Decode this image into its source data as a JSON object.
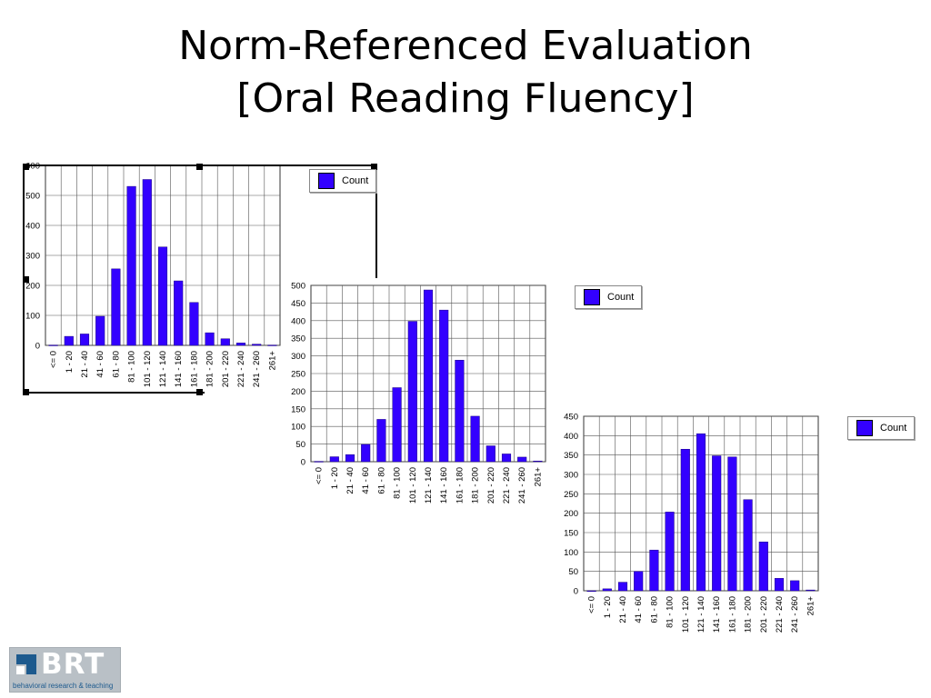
{
  "slide": {
    "title_line1": "Norm-Referenced Evaluation",
    "title_line2": "[Oral Reading Fluency]"
  },
  "logo": {
    "text": "BRT",
    "tagline": "behavioral research & teaching"
  },
  "colors": {
    "bar": "#3300ff",
    "grid": "#555555",
    "legend_border": "#888888"
  },
  "chart_data": [
    {
      "type": "bar",
      "categories": [
        "<= 0",
        "1 - 20",
        "21 - 40",
        "41 - 60",
        "61 - 80",
        "81 - 100",
        "101 - 120",
        "121 - 140",
        "141 - 160",
        "161 - 180",
        "181 - 200",
        "201 - 220",
        "221 - 240",
        "241 - 260",
        "261+"
      ],
      "series": [
        {
          "name": "Count",
          "values": [
            1,
            30,
            38,
            97,
            255,
            530,
            553,
            328,
            215,
            143,
            42,
            22,
            8,
            4,
            1
          ]
        }
      ],
      "yticks": [
        "0",
        "100",
        "200",
        "300",
        "400",
        "500",
        "600"
      ],
      "ylim": [
        0,
        600
      ],
      "legend": "top-right",
      "grid": true
    },
    {
      "type": "bar",
      "categories": [
        "<= 0",
        "1 - 20",
        "21 - 40",
        "41 - 60",
        "61 - 80",
        "81 - 100",
        "101 - 120",
        "121 - 140",
        "141 - 160",
        "161 - 180",
        "181 - 200",
        "201 - 220",
        "221 - 240",
        "241 - 260",
        "261+"
      ],
      "series": [
        {
          "name": "Count",
          "values": [
            1,
            14,
            20,
            49,
            120,
            210,
            398,
            487,
            430,
            288,
            129,
            45,
            22,
            13,
            2
          ]
        }
      ],
      "yticks": [
        "0",
        "50",
        "100",
        "150",
        "200",
        "250",
        "300",
        "350",
        "400",
        "450",
        "500"
      ],
      "ylim": [
        0,
        500
      ],
      "legend": "top-right",
      "grid": true
    },
    {
      "type": "bar",
      "categories": [
        "<= 0",
        "1 - 20",
        "21 - 40",
        "41 - 60",
        "61 - 80",
        "81 - 100",
        "101 - 120",
        "121 - 140",
        "141 - 160",
        "161 - 180",
        "181 - 200",
        "201 - 220",
        "221 - 240",
        "241 - 260",
        "261+"
      ],
      "series": [
        {
          "name": "Count",
          "values": [
            0,
            5,
            22,
            50,
            105,
            203,
            365,
            405,
            348,
            345,
            235,
            126,
            32,
            26,
            2
          ]
        }
      ],
      "yticks": [
        "0",
        "50",
        "100",
        "150",
        "200",
        "250",
        "300",
        "350",
        "400",
        "450"
      ],
      "ylim": [
        0,
        450
      ],
      "legend": "top-right",
      "grid": true
    }
  ]
}
